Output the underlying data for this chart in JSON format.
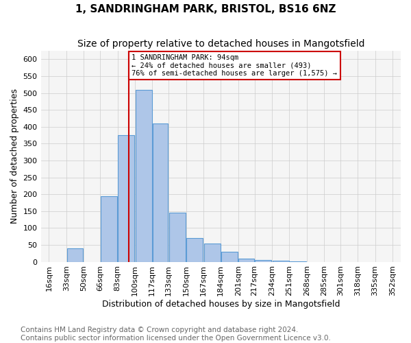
{
  "title": "1, SANDRINGHAM PARK, BRISTOL, BS16 6NZ",
  "subtitle": "Size of property relative to detached houses in Mangotsfield",
  "xlabel": "Distribution of detached houses by size in Mangotsfield",
  "ylabel": "Number of detached properties",
  "footnote1": "Contains HM Land Registry data © Crown copyright and database right 2024.",
  "footnote2": "Contains public sector information licensed under the Open Government Licence v3.0.",
  "annotation_line1": "1 SANDRINGHAM PARK: 94sqm",
  "annotation_line2": "← 24% of detached houses are smaller (493)",
  "annotation_line3": "76% of semi-detached houses are larger (1,575) →",
  "property_size_sqm": 94,
  "bin_edges": [
    16,
    33,
    50,
    66,
    83,
    100,
    117,
    133,
    150,
    167,
    184,
    201,
    217,
    234,
    251,
    268,
    285,
    301,
    318,
    335,
    352
  ],
  "bin_labels": [
    "16sqm",
    "33sqm",
    "50sqm",
    "66sqm",
    "83sqm",
    "100sqm",
    "117sqm",
    "133sqm",
    "150sqm",
    "167sqm",
    "184sqm",
    "201sqm",
    "217sqm",
    "234sqm",
    "251sqm",
    "268sqm",
    "285sqm",
    "301sqm",
    "318sqm",
    "335sqm",
    "352sqm"
  ],
  "counts": [
    0,
    40,
    0,
    195,
    375,
    510,
    410,
    145,
    70,
    55,
    30,
    10,
    5,
    3,
    2,
    0,
    0,
    0,
    0,
    0
  ],
  "bar_fill": "#aec6e8",
  "bar_edge": "#5b9bd5",
  "vline_color": "#cc0000",
  "annotation_box_edge": "#cc0000",
  "annotation_box_fill": "white",
  "ylim": [
    0,
    625
  ],
  "yticks": [
    0,
    50,
    100,
    150,
    200,
    250,
    300,
    350,
    400,
    450,
    500,
    550,
    600
  ],
  "bg_color": "#f5f5f5",
  "grid_color": "#cccccc",
  "title_fontsize": 11,
  "subtitle_fontsize": 10,
  "axis_label_fontsize": 9,
  "tick_fontsize": 8,
  "footnote_fontsize": 7.5
}
